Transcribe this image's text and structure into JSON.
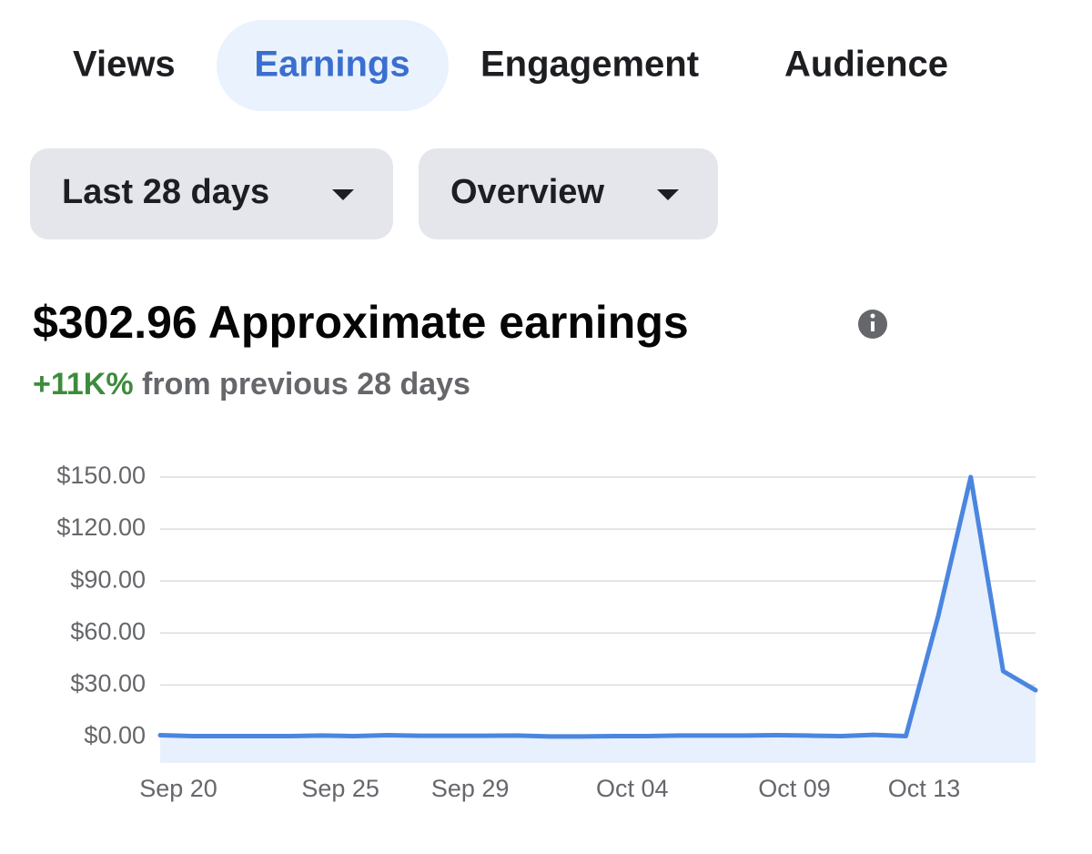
{
  "tabs": [
    "Views",
    "Earnings",
    "Engagement",
    "Audience"
  ],
  "filters": [
    "Last 28 days",
    "Overview"
  ],
  "headline": {
    "amount": "$302.96",
    "label": "Approximate earnings"
  },
  "change": {
    "value": "+11K%",
    "text": "from previous 28 days"
  },
  "chart_data": {
    "type": "line",
    "categories": [
      "Sep 20",
      null,
      null,
      null,
      null,
      "Sep 25",
      null,
      null,
      null,
      "Sep 29",
      null,
      null,
      null,
      null,
      "Oct 04",
      null,
      null,
      null,
      null,
      "Oct 09",
      null,
      null,
      null,
      "Oct 13",
      null,
      null,
      null,
      null
    ],
    "series": [
      {
        "name": "Approximate earnings",
        "color": "#4a86e0",
        "values": [
          1,
          0.5,
          0.5,
          0.5,
          0.5,
          0.8,
          0.5,
          1,
          0.7,
          0.7,
          0.7,
          0.8,
          0.3,
          0.3,
          0.5,
          0.5,
          0.8,
          0.8,
          0.8,
          1,
          0.8,
          0.5,
          1.2,
          0.5,
          70,
          150,
          38,
          27
        ]
      }
    ],
    "ylim": [
      -15,
      150
    ],
    "yticks": [
      {
        "value": 0,
        "label": "$0.00"
      },
      {
        "value": 30,
        "label": "$30.00"
      },
      {
        "value": 60,
        "label": "$60.00"
      },
      {
        "value": 90,
        "label": "$90.00"
      },
      {
        "value": 120,
        "label": "$120.00"
      },
      {
        "value": 150,
        "label": "$150.00"
      }
    ],
    "grid": true,
    "area_color": "#e7f0fc"
  }
}
